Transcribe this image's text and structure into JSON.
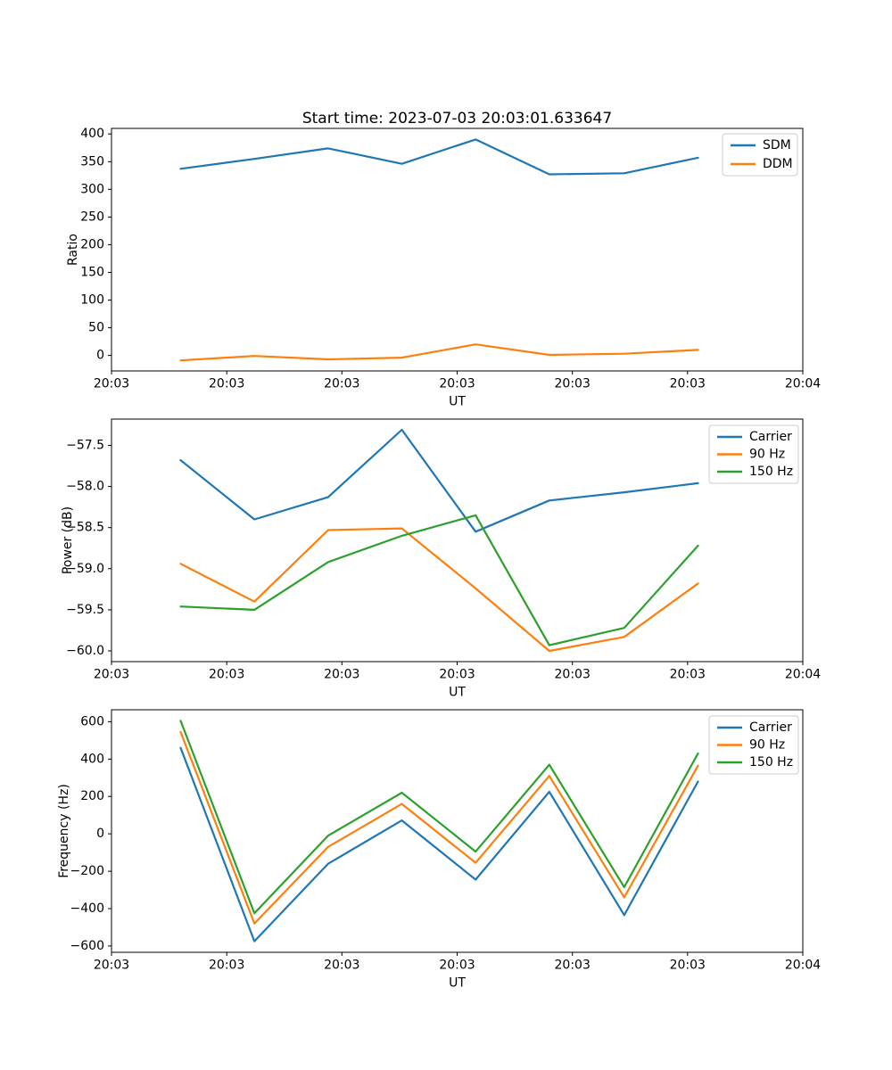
{
  "figure": {
    "title": "Start time: 2023-07-03 20:03:01.633647"
  },
  "chart_data": [
    {
      "type": "line",
      "id": "ratio",
      "title": "Start time: 2023-07-03 20:03:01.633647",
      "xlabel": "UT",
      "ylabel": "Ratio",
      "x": [
        6.0,
        12.4,
        18.8,
        25.2,
        31.6,
        38.0,
        44.5,
        50.9
      ],
      "series": [
        {
          "name": "SDM",
          "color": "#1f77b4",
          "values": [
            337,
            355,
            374,
            346,
            390,
            327,
            329,
            357
          ]
        },
        {
          "name": "DDM",
          "color": "#ff7f0e",
          "values": [
            -9,
            -1,
            -7,
            -4,
            20,
            1,
            3,
            10
          ]
        }
      ],
      "xlim": [
        0,
        60
      ],
      "ylim": [
        -28,
        410
      ],
      "yticks": [
        0,
        50,
        100,
        150,
        200,
        250,
        300,
        350,
        400
      ],
      "ytick_labels": [
        "0",
        "50",
        "100",
        "150",
        "200",
        "250",
        "300",
        "350",
        "400"
      ],
      "xticks": [
        0,
        10,
        20,
        30,
        40,
        50,
        60
      ],
      "xtick_labels": [
        "20:03",
        "20:03",
        "20:03",
        "20:03",
        "20:03",
        "20:03",
        "20:04"
      ],
      "legend_position": "upper right",
      "grid": false
    },
    {
      "type": "line",
      "id": "power",
      "title": "",
      "xlabel": "UT",
      "ylabel": "Power (dB)",
      "x": [
        6.0,
        12.4,
        18.8,
        25.2,
        31.6,
        38.0,
        44.5,
        50.9
      ],
      "series": [
        {
          "name": "Carrier",
          "color": "#1f77b4",
          "values": [
            -57.68,
            -58.4,
            -58.13,
            -57.31,
            -58.55,
            -58.17,
            -58.07,
            -57.96
          ]
        },
        {
          "name": "90 Hz",
          "color": "#ff7f0e",
          "values": [
            -58.94,
            -59.4,
            -58.53,
            -58.51,
            -59.24,
            -60.0,
            -59.83,
            -59.18
          ]
        },
        {
          "name": "150 Hz",
          "color": "#2ca02c",
          "values": [
            -59.46,
            -59.5,
            -58.92,
            -58.6,
            -58.35,
            -59.93,
            -59.72,
            -58.72
          ]
        }
      ],
      "xlim": [
        0,
        60
      ],
      "ylim": [
        -60.13,
        -57.18
      ],
      "yticks": [
        -57.5,
        -58.0,
        -58.5,
        -59.0,
        -59.5,
        -60.0
      ],
      "ytick_labels": [
        "−57.5",
        "−58.0",
        "−58.5",
        "−59.0",
        "−59.5",
        "−60.0"
      ],
      "xticks": [
        0,
        10,
        20,
        30,
        40,
        50,
        60
      ],
      "xtick_labels": [
        "20:03",
        "20:03",
        "20:03",
        "20:03",
        "20:03",
        "20:03",
        "20:04"
      ],
      "legend_position": "upper right",
      "grid": false
    },
    {
      "type": "line",
      "id": "frequency",
      "title": "",
      "xlabel": "UT",
      "ylabel": "Frequency (Hz)",
      "x": [
        6.0,
        12.4,
        18.8,
        25.2,
        31.6,
        38.0,
        44.5,
        50.9
      ],
      "series": [
        {
          "name": "Carrier",
          "color": "#1f77b4",
          "values": [
            460,
            -575,
            -160,
            72,
            -245,
            225,
            -435,
            280
          ]
        },
        {
          "name": "90 Hz",
          "color": "#ff7f0e",
          "values": [
            545,
            -480,
            -70,
            160,
            -155,
            310,
            -340,
            365
          ]
        },
        {
          "name": "150 Hz",
          "color": "#2ca02c",
          "values": [
            605,
            -425,
            -10,
            220,
            -95,
            370,
            -285,
            430
          ]
        }
      ],
      "xlim": [
        0,
        60
      ],
      "ylim": [
        -634,
        664
      ],
      "yticks": [
        -600,
        -400,
        -200,
        0,
        200,
        400,
        600
      ],
      "ytick_labels": [
        "−600",
        "−400",
        "−200",
        "0",
        "200",
        "400",
        "600"
      ],
      "xticks": [
        0,
        10,
        20,
        30,
        40,
        50,
        60
      ],
      "xtick_labels": [
        "20:03",
        "20:03",
        "20:03",
        "20:03",
        "20:03",
        "20:03",
        "20:04"
      ],
      "legend_position": "upper right",
      "grid": false
    }
  ]
}
